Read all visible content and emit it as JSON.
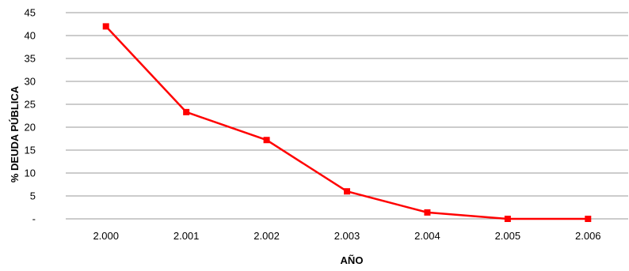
{
  "chart_data": {
    "type": "line",
    "categories": [
      "2.000",
      "2.001",
      "2.002",
      "2.003",
      "2.004",
      "2.005",
      "2.006"
    ],
    "series": [
      {
        "values": [
          42,
          23.3,
          17.2,
          6,
          1.4,
          0,
          0
        ]
      }
    ],
    "xlabel": "AÑO",
    "ylabel": "% DEUDA PÚBLICA",
    "ylim": [
      0,
      45
    ],
    "yticks": [
      0,
      5,
      10,
      15,
      20,
      25,
      30,
      35,
      40,
      45
    ],
    "ytick_labels": [
      "-",
      "5",
      "10",
      "15",
      "20",
      "25",
      "30",
      "35",
      "40",
      "45"
    ],
    "grid": true,
    "line_color": "#ff0000",
    "marker": "square",
    "legend": "none"
  }
}
